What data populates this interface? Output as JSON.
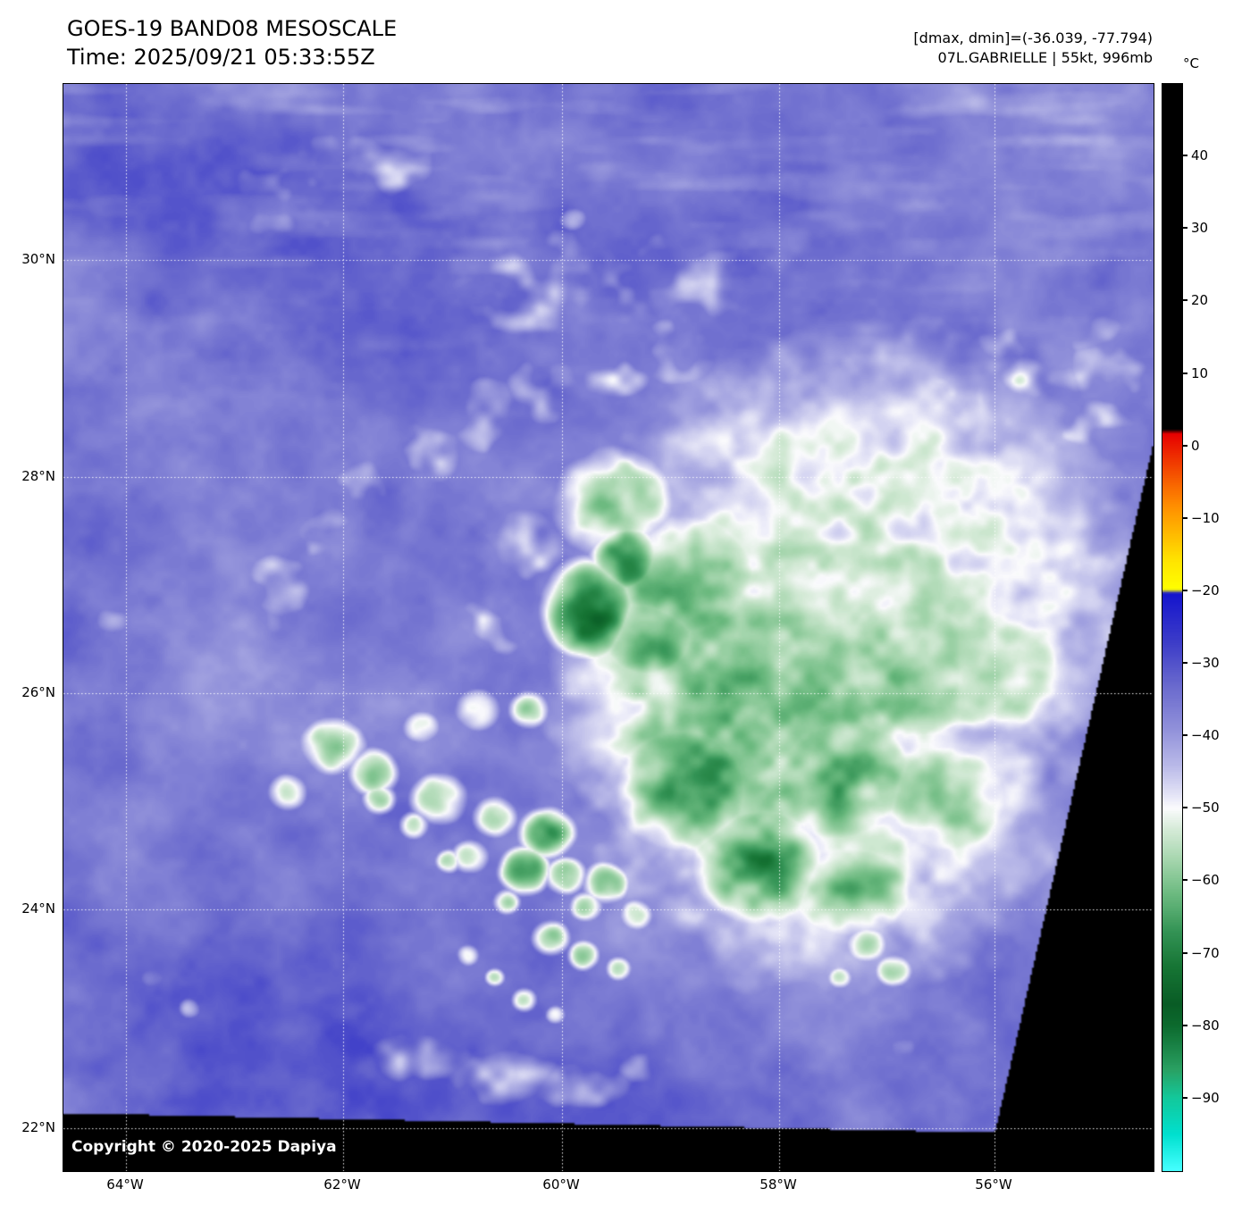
{
  "header": {
    "title": "GOES-19 BAND08 MESOSCALE",
    "time": "Time: 2025/09/21 05:33:55Z",
    "range": "[dmax, dmin]=(-36.039, -77.794)",
    "storm": "07L.GABRIELLE | 55kt, 996mb"
  },
  "colorbar": {
    "unit": "°C",
    "domain": [
      50,
      -100
    ],
    "ticks": [
      40,
      30,
      20,
      10,
      0,
      -10,
      -20,
      -30,
      -40,
      -50,
      -60,
      -70,
      -80,
      -90
    ],
    "tick_labels": [
      "40",
      "30",
      "20",
      "10",
      "0",
      "−10",
      "−20",
      "−30",
      "−40",
      "−50",
      "−60",
      "−70",
      "−80",
      "−90"
    ],
    "stops": [
      [
        50,
        "#000000"
      ],
      [
        2.4,
        "#000000"
      ],
      [
        1.8,
        "#e60000"
      ],
      [
        -8,
        "#ff8c00"
      ],
      [
        -16,
        "#ffe600"
      ],
      [
        -19.7,
        "#ffff00"
      ],
      [
        -20.3,
        "#1414cd"
      ],
      [
        -27,
        "#3c3cc8"
      ],
      [
        -33,
        "#6969cd"
      ],
      [
        -39,
        "#9191da"
      ],
      [
        -44,
        "#b9b9e8"
      ],
      [
        -48,
        "#e3e3f6"
      ],
      [
        -50,
        "#fbfbfd"
      ],
      [
        -53,
        "#d4ead6"
      ],
      [
        -57,
        "#a6d6ae"
      ],
      [
        -62,
        "#6ab97e"
      ],
      [
        -67,
        "#339355"
      ],
      [
        -72,
        "#167434"
      ],
      [
        -77,
        "#095c25"
      ],
      [
        -80,
        "#0c6a2e"
      ],
      [
        -86,
        "#2aa062"
      ],
      [
        -90,
        "#13c89b"
      ],
      [
        -95,
        "#00e0cf"
      ],
      [
        -100,
        "#45ffff"
      ]
    ]
  },
  "axes": {
    "lat_labels": [
      "30°N",
      "28°N",
      "26°N",
      "24°N",
      "22°N"
    ],
    "lon_labels": [
      "64°W",
      "62°W",
      "60°W",
      "58°W",
      "56°W"
    ]
  },
  "map": {
    "copyright": "Copyright © 2020-2025 Dapiya"
  },
  "chart_data": {
    "type": "heatmap",
    "title": "GOES-19 BAND08 MESOSCALE",
    "time_utc": "2025/09/21 05:33:55Z",
    "dmax_c": -36.039,
    "dmin_c": -77.794,
    "storm_id": "07L",
    "storm_name": "GABRIELLE",
    "intensity_kt": 55,
    "pressure_mb": 996,
    "colorbar_unit": "°C",
    "colorbar_ticks_c": [
      40,
      30,
      20,
      10,
      0,
      -10,
      -20,
      -30,
      -40,
      -50,
      -60,
      -70,
      -80,
      -90
    ],
    "lat_ticks": [
      "30°N",
      "28°N",
      "26°N",
      "24°N",
      "22°N"
    ],
    "lon_ticks": [
      "64°W",
      "62°W",
      "60°W",
      "58°W",
      "56°W"
    ]
  }
}
